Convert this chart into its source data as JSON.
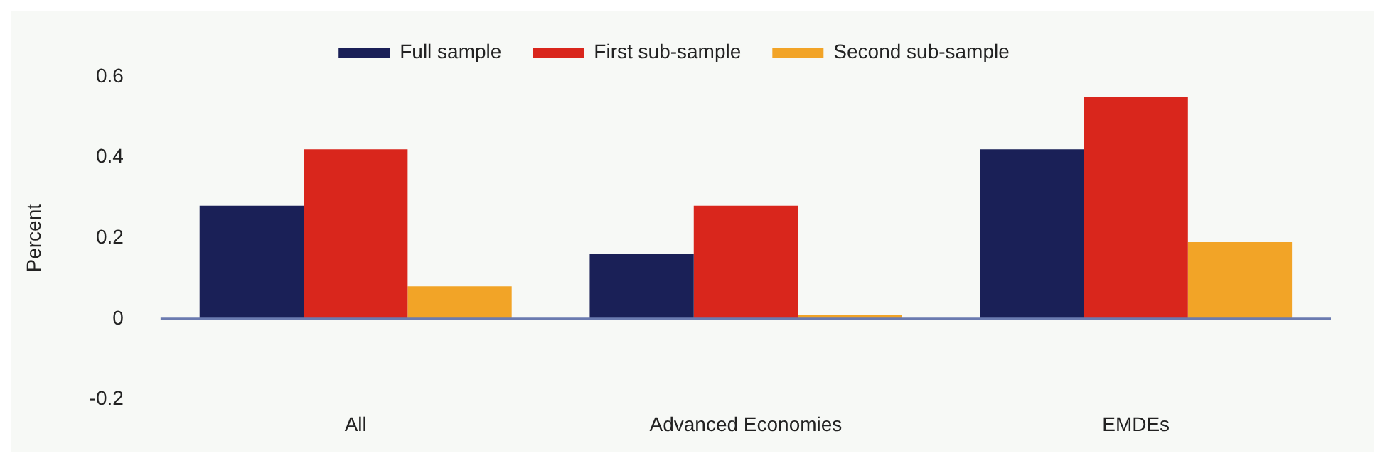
{
  "chart_data": {
    "type": "bar",
    "ylabel": "Percent",
    "categories": [
      "All",
      "Advanced Economies",
      "EMDEs"
    ],
    "series": [
      {
        "name": "Full sample",
        "color": "#1a2057",
        "values": [
          0.28,
          0.16,
          0.42
        ]
      },
      {
        "name": "First sub-sample",
        "color": "#d9261c",
        "values": [
          0.42,
          0.28,
          0.55
        ]
      },
      {
        "name": "Second sub-sample",
        "color": "#f2a427",
        "values": [
          0.08,
          0.01,
          0.19
        ]
      }
    ],
    "ylim": [
      -0.2,
      0.6
    ],
    "yticks": [
      -0.2,
      0,
      0.2,
      0.4,
      0.6
    ],
    "grid": false,
    "legend": "top",
    "ref_lines": [
      {
        "axis": "y",
        "value": 0,
        "color": "#6b7bb0"
      }
    ]
  }
}
